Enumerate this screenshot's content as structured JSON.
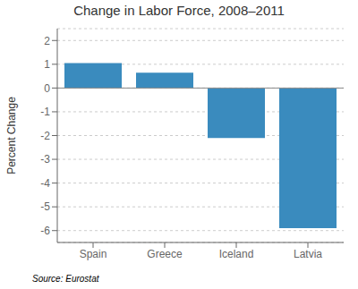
{
  "chart_data": {
    "type": "bar",
    "title": "Change in Labor Force, 2008–2011",
    "categories": [
      "Spain",
      "Greece",
      "Iceland",
      "Latvia"
    ],
    "values": [
      1.05,
      0.65,
      -2.1,
      -5.9
    ],
    "color": "#3A8BBE",
    "ylabel": "Percent Change",
    "ylim": [
      -6.5,
      2.5
    ],
    "yticks": [
      -6,
      -5,
      -4,
      -3,
      -2,
      -1,
      0,
      1,
      2
    ],
    "grid": true,
    "annotation": "Source: Eurostat"
  }
}
